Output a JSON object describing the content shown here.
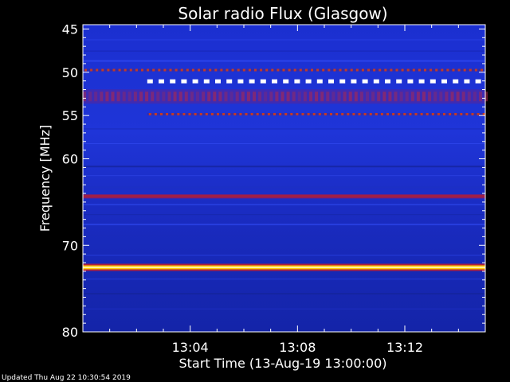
{
  "chart_data": {
    "type": "heatmap",
    "title": "Solar radio Flux (Glasgow)",
    "xlabel": "Start Time (13-Aug-19 13:00:00)",
    "ylabel": "Frequency [MHz]",
    "y_axis": {
      "range": [
        44.5,
        80
      ],
      "direction": "increasing-downward",
      "ticks": [
        45,
        50,
        55,
        60,
        70,
        80
      ],
      "tick_labels": [
        "45",
        "50",
        "55",
        "60",
        "70",
        "80"
      ]
    },
    "x_axis": {
      "range_minutes": [
        0,
        15
      ],
      "ticks_minutes": [
        4,
        8,
        12
      ],
      "tick_labels": [
        "13:04",
        "13:08",
        "13:12"
      ]
    },
    "colormap": "blue-red-yellow-white",
    "background_color": "#1a2cc8",
    "bands": [
      {
        "freq": 49.7,
        "level": 0.55,
        "style": "dotted"
      },
      {
        "freq": 51.0,
        "level": 1.0,
        "style": "dashed",
        "start_minute": 2.4
      },
      {
        "freq": 52.8,
        "level": 0.45,
        "style": "mottled"
      },
      {
        "freq": 54.8,
        "level": 0.5,
        "style": "dotted",
        "start_minute": 2.4
      },
      {
        "freq": 64.3,
        "level": 0.6,
        "style": "solid"
      },
      {
        "freq": 72.5,
        "level": 1.0,
        "style": "solid"
      }
    ],
    "grid": false,
    "legend": "none"
  },
  "footer": {
    "updated": "Updated Thu Aug 22 10:30:54 2019"
  }
}
